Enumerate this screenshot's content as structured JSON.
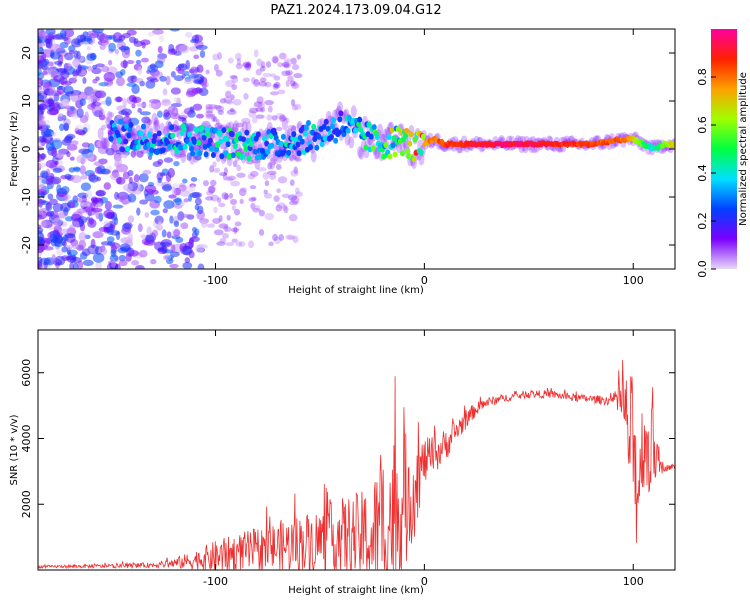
{
  "title": "PAZ1.2024.173.09.04.G12",
  "chart_data": [
    {
      "type": "heatmap",
      "xlabel": "Height of straight line (km)",
      "ylabel": "Frequency (Hz)",
      "xlim": [
        -185,
        120
      ],
      "ylim": [
        -25,
        25
      ],
      "xticks": [
        -100,
        0,
        100
      ],
      "yticks": [
        -20,
        -10,
        0,
        10,
        20
      ],
      "colorbar": {
        "label": "Normalized spectral amplitude",
        "range": [
          0.0,
          1.0
        ],
        "ticks": [
          0.0,
          0.2,
          0.4,
          0.6,
          0.8
        ],
        "colors": [
          "#e8d8f8",
          "#7a00ff",
          "#0040ff",
          "#00e0ff",
          "#00ff40",
          "#a0ff00",
          "#ffa000",
          "#ff2000",
          "#ff00a0"
        ]
      },
      "ridge": {
        "x": [
          -150,
          -130,
          -110,
          -90,
          -70,
          -50,
          -40,
          -30,
          -20,
          -10,
          -5,
          0,
          5,
          10,
          20,
          40,
          60,
          80,
          95,
          100,
          105,
          110,
          115,
          120
        ],
        "y": [
          3,
          2,
          2,
          1,
          1,
          3,
          5,
          3,
          1,
          2,
          0,
          1,
          2,
          1,
          1,
          1,
          1,
          1,
          2,
          2,
          1,
          0,
          1,
          1
        ],
        "amplitude": [
          0.3,
          0.35,
          0.4,
          0.4,
          0.35,
          0.35,
          0.3,
          0.4,
          0.5,
          0.6,
          0.7,
          0.75,
          0.8,
          0.85,
          0.9,
          0.95,
          0.9,
          0.85,
          0.8,
          0.7,
          0.5,
          0.4,
          0.6,
          0.7
        ]
      }
    },
    {
      "type": "line",
      "xlabel": "Height of straight line (km)",
      "ylabel": "SNR (10 * v/v)",
      "xlim": [
        -185,
        120
      ],
      "ylim": [
        0,
        7300
      ],
      "xticks": [
        -100,
        0,
        100
      ],
      "yticks": [
        2000,
        4000,
        6000
      ],
      "color": "#ee3030",
      "envelope": {
        "x": [
          -185,
          -150,
          -130,
          -120,
          -110,
          -100,
          -90,
          -80,
          -70,
          -60,
          -50,
          -40,
          -30,
          -25,
          -20,
          -15,
          -10,
          -5,
          0,
          5,
          10,
          15,
          20,
          25,
          30,
          40,
          50,
          60,
          70,
          80,
          90,
          95,
          100,
          102,
          105,
          108,
          110,
          112,
          115,
          120
        ],
        "mean": [
          100,
          120,
          150,
          200,
          300,
          400,
          500,
          600,
          700,
          800,
          900,
          1000,
          1000,
          900,
          1300,
          1600,
          2000,
          2500,
          3300,
          3500,
          3800,
          4200,
          4600,
          4900,
          5100,
          5250,
          5350,
          5350,
          5250,
          5200,
          5150,
          5100,
          3500,
          2500,
          4000,
          3500,
          3800,
          3200,
          3100,
          3150
        ],
        "spread": [
          40,
          60,
          80,
          150,
          300,
          500,
          600,
          700,
          800,
          900,
          1000,
          1200,
          1400,
          1800,
          2400,
          2600,
          2200,
          1600,
          700,
          600,
          500,
          400,
          300,
          200,
          150,
          120,
          120,
          120,
          120,
          120,
          150,
          800,
          2500,
          2000,
          1500,
          1500,
          1200,
          400,
          100,
          80
        ]
      }
    }
  ]
}
